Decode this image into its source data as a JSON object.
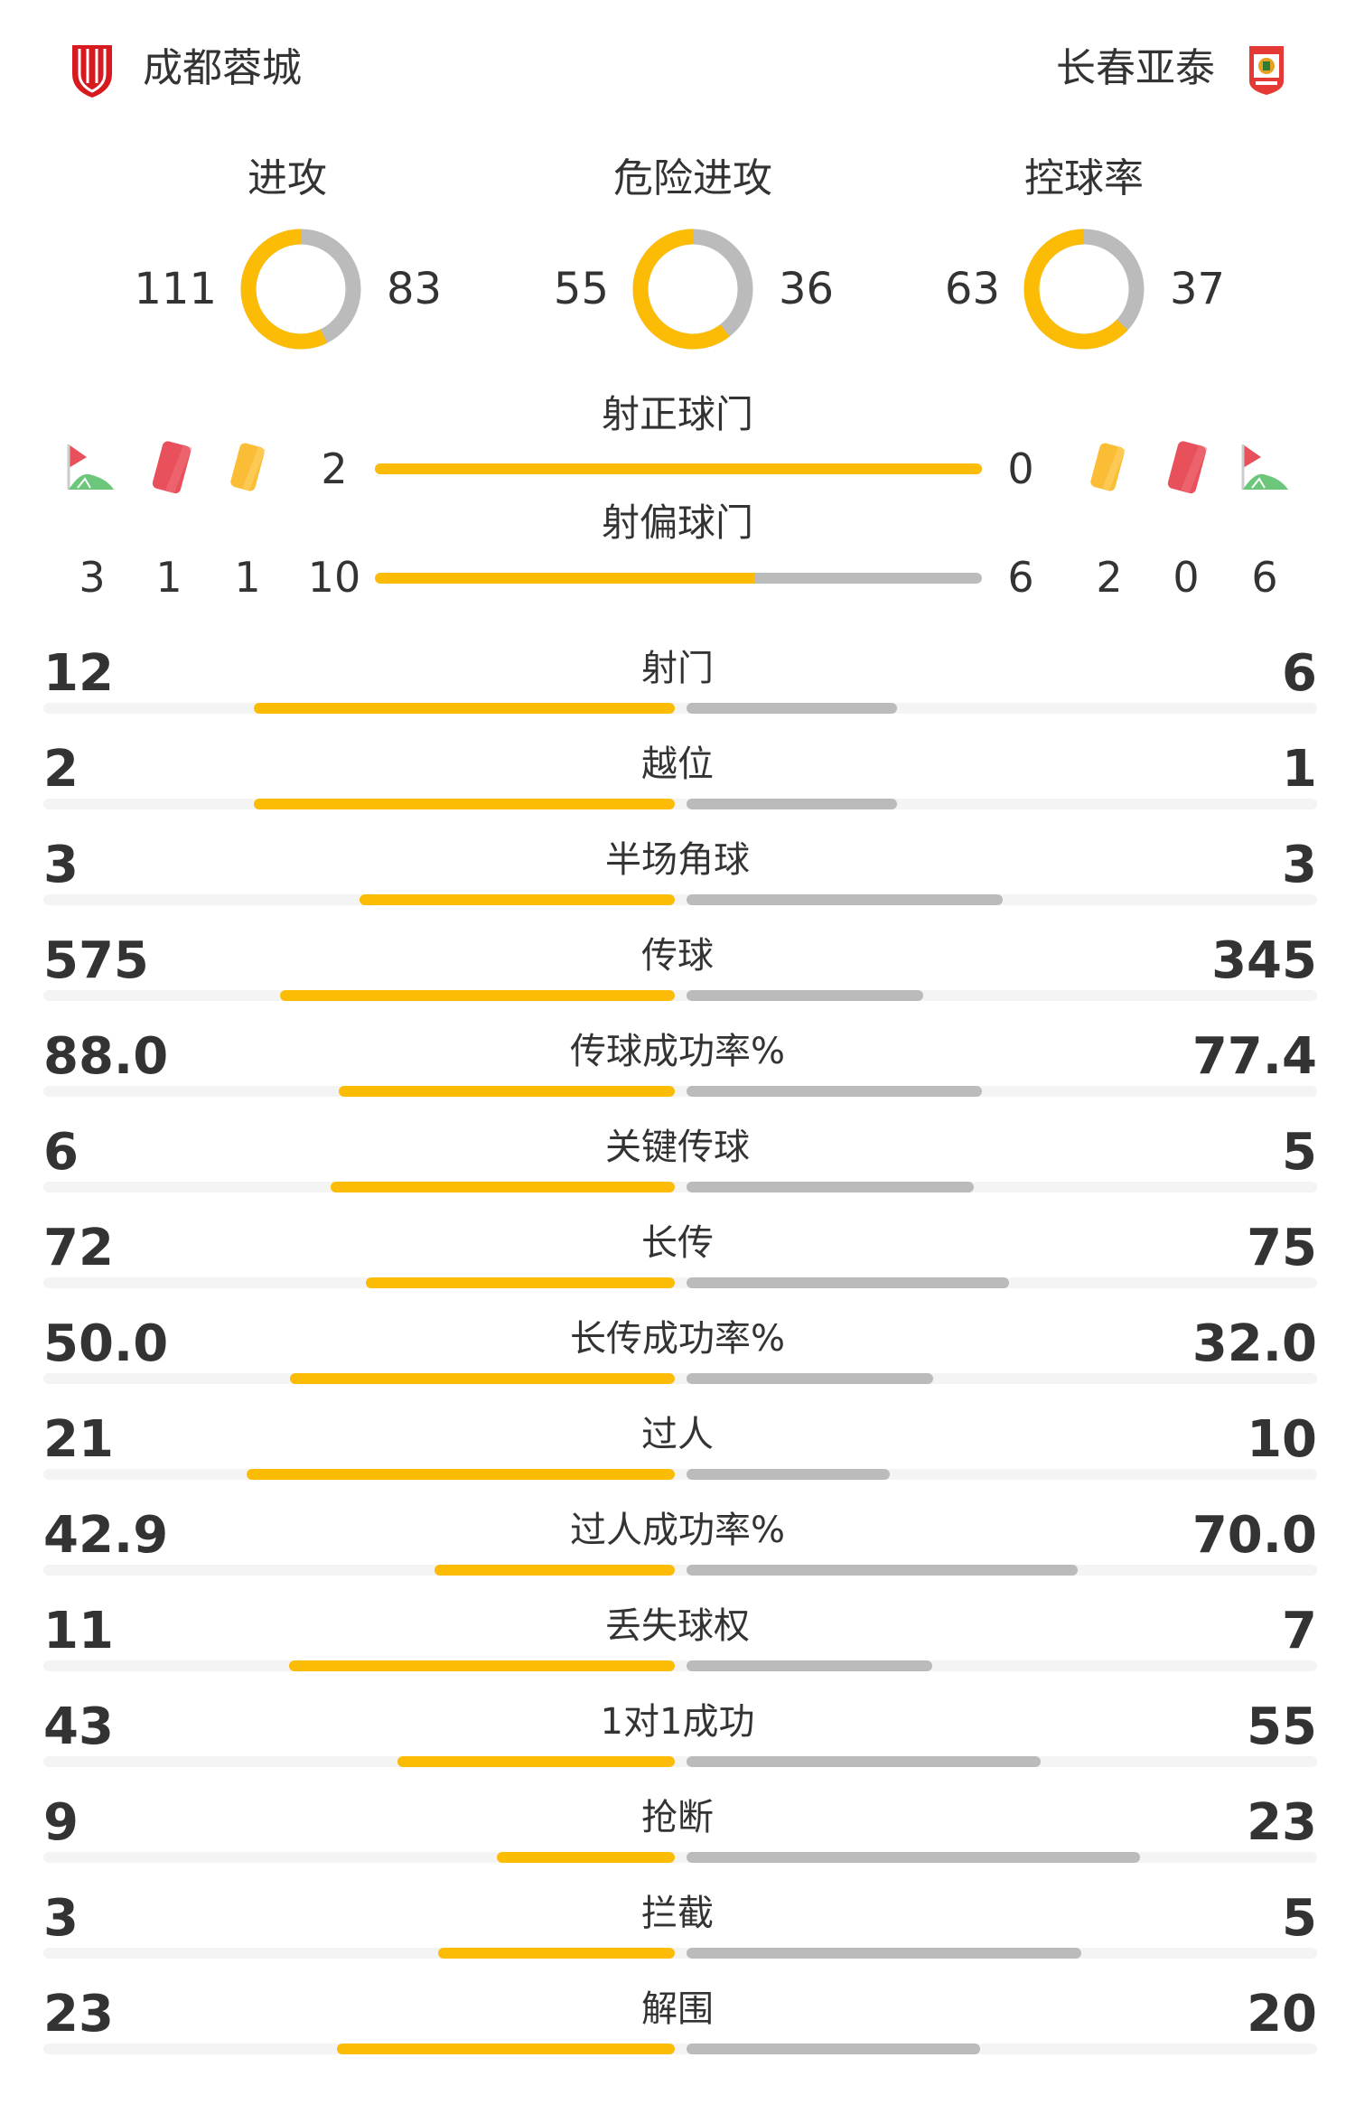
{
  "colors": {
    "home": "#FCBC05",
    "away": "#BBBBBB",
    "track": "#F4F4F4",
    "red_card": "#E8505B",
    "yellow_card": "#FBBD35",
    "corner_flag": "#E8505B"
  },
  "home": {
    "name": "成都蓉城",
    "logo_icon": "chengdu-rongcheng-crest"
  },
  "away": {
    "name": "长春亚泰",
    "logo_icon": "changchun-yatai-crest"
  },
  "donuts": [
    {
      "title": "进攻",
      "home": 111,
      "away": 83
    },
    {
      "title": "危险进攻",
      "home": 55,
      "away": 36
    },
    {
      "title": "控球率",
      "home": 63,
      "away": 37
    }
  ],
  "shots_on_target": {
    "label": "射正球门",
    "home": 2,
    "away": 0
  },
  "shots_off_target": {
    "label": "射偏球门",
    "home": 10,
    "away": 6
  },
  "events": {
    "home": {
      "corners": 3,
      "red_cards": 1,
      "yellow_cards": 1
    },
    "away": {
      "yellow_cards": 2,
      "red_cards": 0,
      "corners": 6
    }
  },
  "stats": [
    {
      "label": "射门",
      "home": "12",
      "away": "6"
    },
    {
      "label": "越位",
      "home": "2",
      "away": "1"
    },
    {
      "label": "半场角球",
      "home": "3",
      "away": "3"
    },
    {
      "label": "传球",
      "home": "575",
      "away": "345"
    },
    {
      "label": "传球成功率%",
      "home": "88.0",
      "away": "77.4"
    },
    {
      "label": "关键传球",
      "home": "6",
      "away": "5"
    },
    {
      "label": "长传",
      "home": "72",
      "away": "75"
    },
    {
      "label": "长传成功率%",
      "home": "50.0",
      "away": "32.0"
    },
    {
      "label": "过人",
      "home": "21",
      "away": "10"
    },
    {
      "label": "过人成功率%",
      "home": "42.9",
      "away": "70.0"
    },
    {
      "label": "丢失球权",
      "home": "11",
      "away": "7"
    },
    {
      "label": "1对1成功",
      "home": "43",
      "away": "55"
    },
    {
      "label": "抢断",
      "home": "9",
      "away": "23"
    },
    {
      "label": "拦截",
      "home": "3",
      "away": "5"
    },
    {
      "label": "解围",
      "home": "23",
      "away": "20"
    }
  ]
}
